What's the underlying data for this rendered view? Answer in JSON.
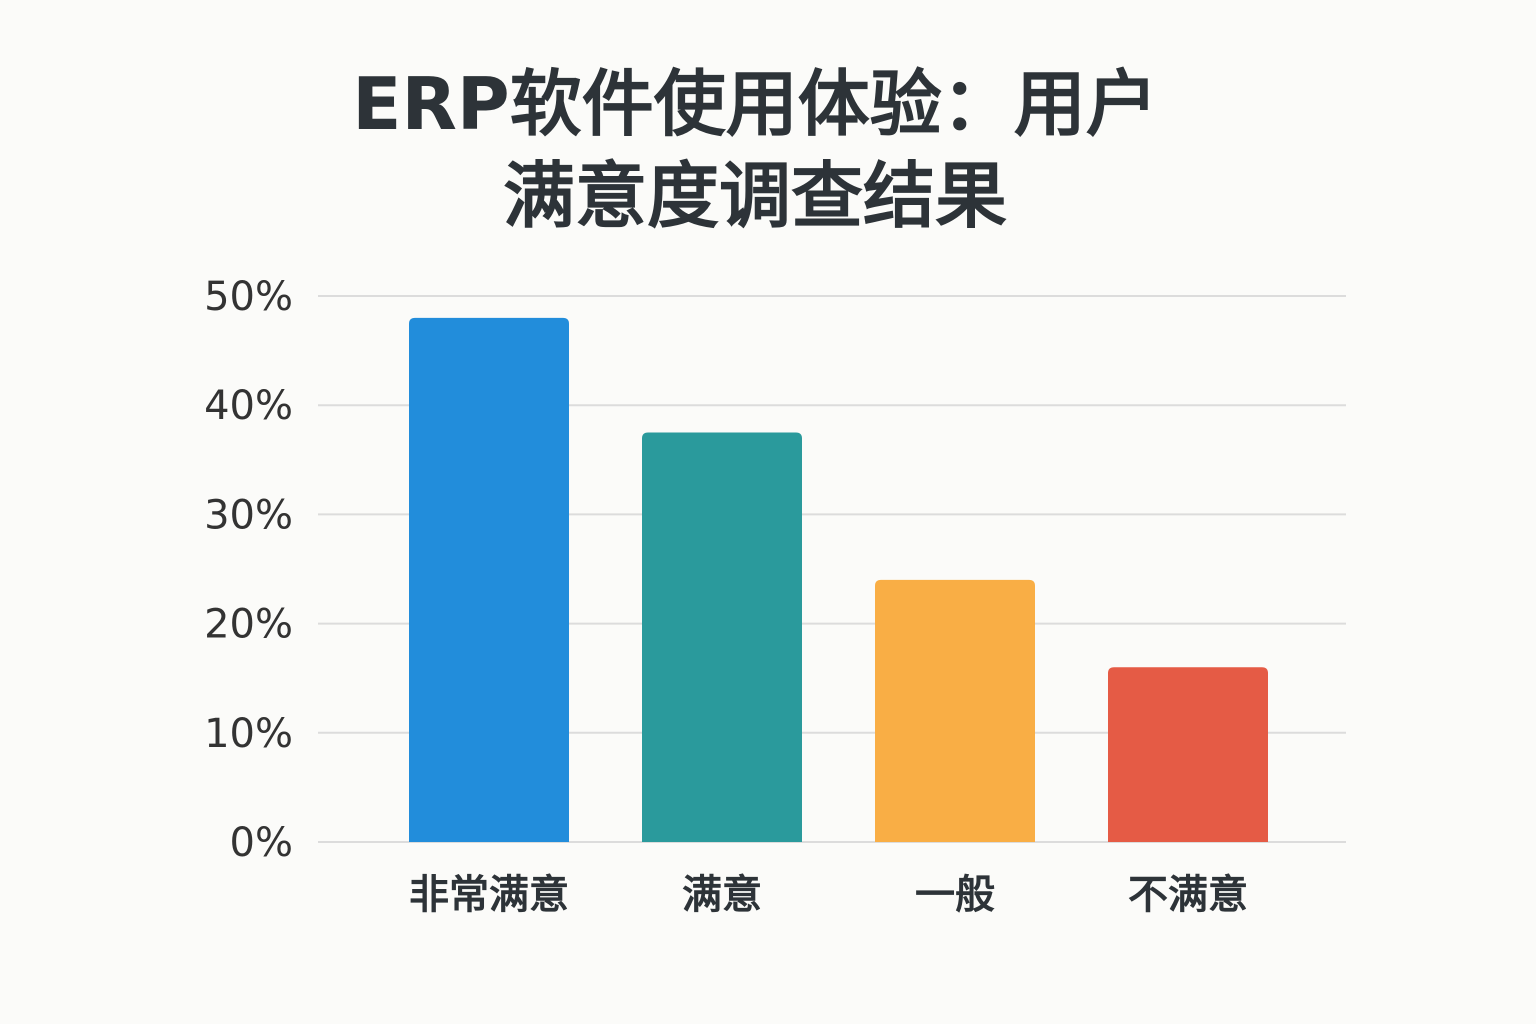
{
  "chart_data": {
    "type": "bar",
    "title_lines": [
      "ERP软件使用体验：用户",
      "满意度调查结果"
    ],
    "categories": [
      "非常满意",
      "满意",
      "一般",
      "不满意"
    ],
    "values": [
      48,
      37.5,
      24,
      16
    ],
    "colors": [
      "#228ddb",
      "#2a9a9c",
      "#f9ae45",
      "#e55b45"
    ],
    "xlabel": "",
    "ylabel": "",
    "ylim": [
      0,
      50
    ],
    "yticks": [
      0,
      10,
      20,
      30,
      40,
      50
    ],
    "ytick_labels": [
      "0%",
      "10%",
      "20%",
      "30%",
      "40%",
      "50%"
    ],
    "grid": true,
    "legend": "none"
  }
}
